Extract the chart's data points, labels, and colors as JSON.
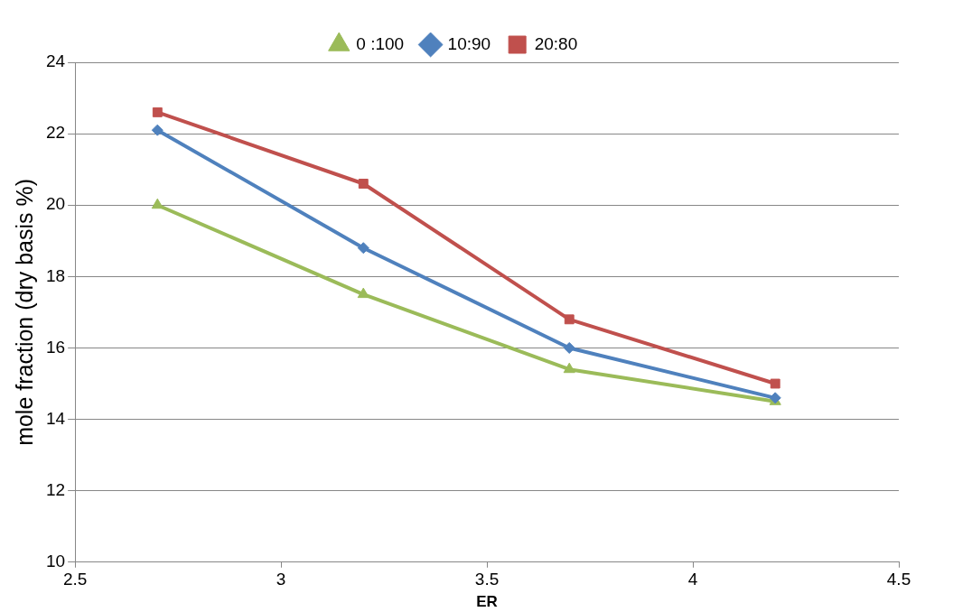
{
  "chart_data": {
    "type": "line",
    "xlabel": "ER",
    "ylabel": "mole fraction (dry basis %)",
    "x": [
      2.7,
      3.2,
      3.7,
      4.2
    ],
    "series": [
      {
        "name": "0 :100",
        "color": "#9bbb59",
        "marker": "triangle",
        "values": [
          20.0,
          17.5,
          15.4,
          14.5
        ]
      },
      {
        "name": "10:90",
        "color": "#4f81bd",
        "marker": "diamond",
        "values": [
          22.1,
          18.8,
          16.0,
          14.6
        ]
      },
      {
        "name": "20:80",
        "color": "#c0504d",
        "marker": "square",
        "values": [
          22.6,
          20.6,
          16.8,
          15.0
        ]
      }
    ],
    "xlim": [
      2.5,
      4.5
    ],
    "xticks": [
      2.5,
      3,
      3.5,
      4,
      4.5
    ],
    "ylim": [
      10,
      24
    ],
    "yticks": [
      10,
      12,
      14,
      16,
      18,
      20,
      22,
      24
    ],
    "grid": "y",
    "legend": "top",
    "line_style": "solid"
  }
}
